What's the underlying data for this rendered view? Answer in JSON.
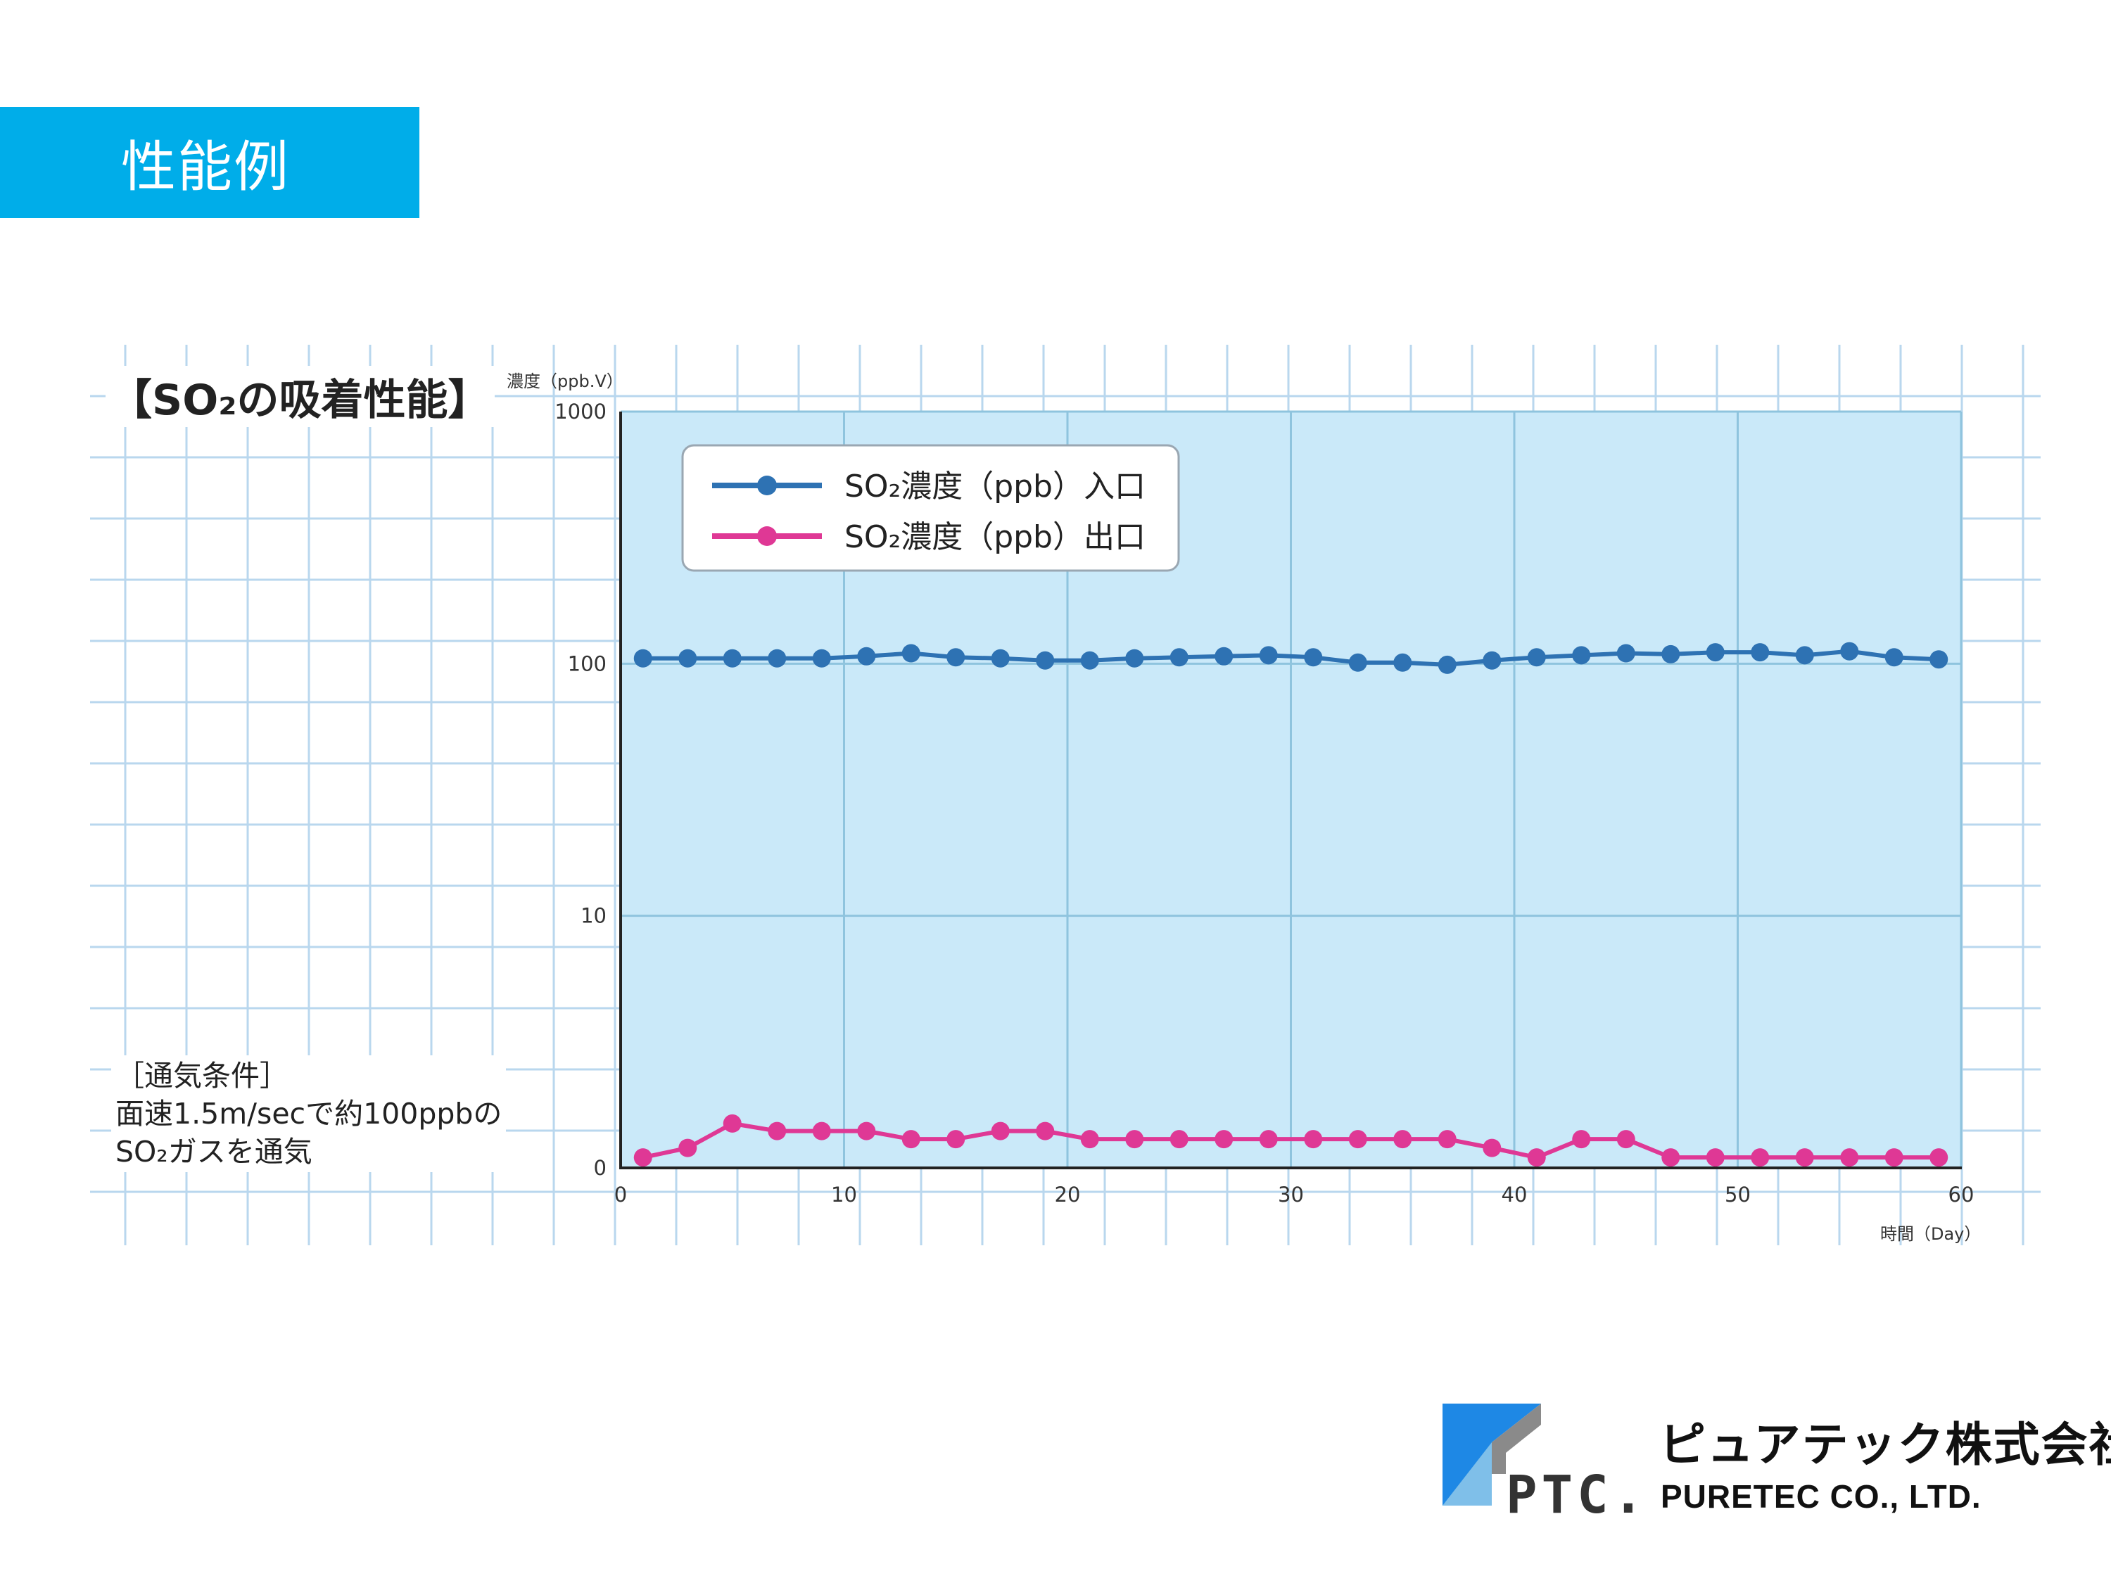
{
  "header": {
    "title": "性能例"
  },
  "section_title": "【SO₂の吸着性能】",
  "conditions": {
    "line1": "［通気条件］",
    "line2": "面速1.5m/secで約100ppbの",
    "line3": "SO₂ガスを通気"
  },
  "logo": {
    "mark_text": "PTC.",
    "name_jp": "ピュアテック株式会社",
    "name_en": "PURETEC CO., LTD."
  },
  "colors": {
    "header_tab": "#00ade9",
    "plot_bg": "#cae9f9",
    "grid_bg": "#b9d7ee",
    "inlet": "#2e72b3",
    "outlet": "#df3895"
  },
  "chart_data": {
    "type": "line",
    "ylabel": "濃度（ppb.V）",
    "xlabel": "時間（Day）",
    "y_scale": "log",
    "ylim": [
      0,
      1000
    ],
    "xlim": [
      0,
      60
    ],
    "x_ticks": [
      "0",
      "10",
      "20",
      "30",
      "40",
      "50",
      "60"
    ],
    "y_ticks": [
      "0",
      "10",
      "100",
      "1000"
    ],
    "grid": true,
    "legend_position": "top-left",
    "x": [
      1,
      3,
      5,
      7,
      9,
      11,
      13,
      15,
      17,
      19,
      21,
      23,
      25,
      27,
      29,
      31,
      33,
      35,
      37,
      39,
      41,
      43,
      45,
      47,
      49,
      51,
      53,
      55,
      57,
      59
    ],
    "series": [
      {
        "name": "SO₂濃度（ppb）入口",
        "color": "#2e72b3",
        "values": [
          105,
          105,
          105,
          105,
          105,
          107,
          110,
          106,
          105,
          103,
          103,
          105,
          106,
          107,
          108,
          106,
          101,
          101,
          99,
          103,
          106,
          108,
          110,
          109,
          111,
          111,
          108,
          112,
          106,
          104
        ]
      },
      {
        "name": "SO₂濃度（ppb）出口",
        "color": "#df3895",
        "values": [
          1.1,
          1.2,
          1.5,
          1.4,
          1.4,
          1.4,
          1.3,
          1.3,
          1.4,
          1.4,
          1.3,
          1.3,
          1.3,
          1.3,
          1.3,
          1.3,
          1.3,
          1.3,
          1.3,
          1.2,
          1.1,
          1.3,
          1.3,
          1.1,
          1.1,
          1.1,
          1.1,
          1.1,
          1.1,
          1.1
        ]
      }
    ]
  }
}
